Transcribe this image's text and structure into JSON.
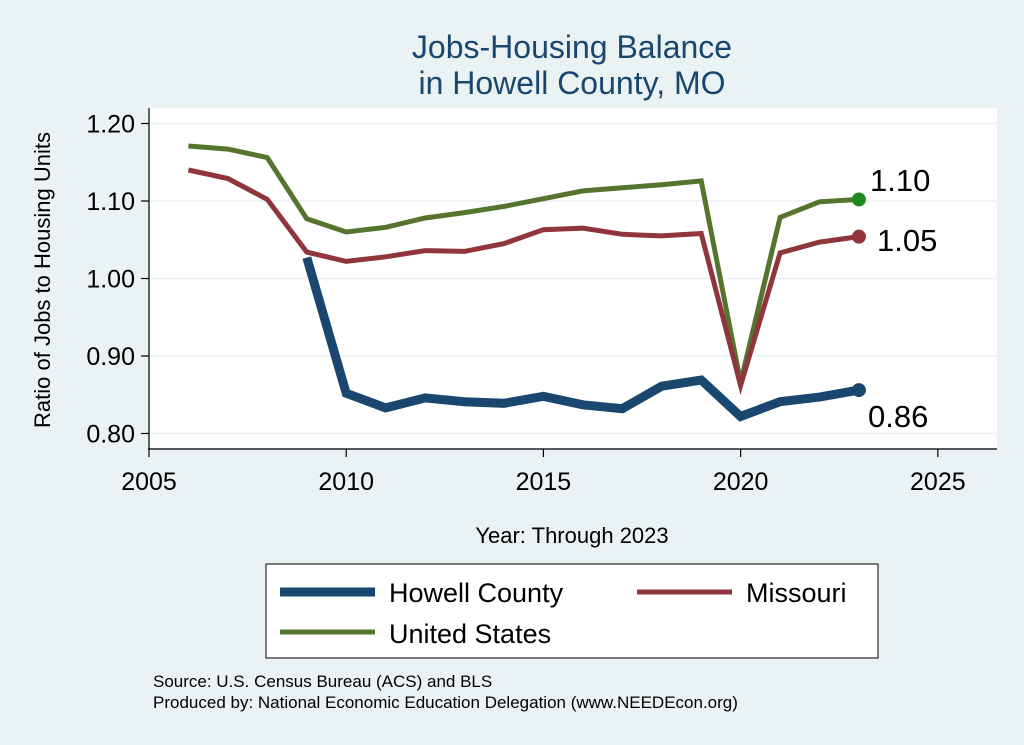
{
  "chart_data": {
    "type": "line",
    "title_line1": "Jobs-Housing Balance",
    "title_line2": "in Howell County, MO",
    "xlabel": "Year: Through 2023",
    "ylabel": "Ratio of Jobs to Housing Units",
    "xlim": [
      2005,
      2026.5
    ],
    "ylim": [
      0.78,
      1.22
    ],
    "x_ticks": [
      2005,
      2010,
      2015,
      2020,
      2025
    ],
    "y_ticks": [
      0.8,
      0.9,
      1.0,
      1.1,
      1.2
    ],
    "y_tick_labels": [
      "0.80",
      "0.90",
      "1.00",
      "1.10",
      "1.20"
    ],
    "grid": true,
    "legend_position": "bottom",
    "series": [
      {
        "name": "Howell County",
        "color": "#1a476f",
        "end_label": "0.86",
        "x": [
          2009,
          2010,
          2011,
          2012,
          2013,
          2014,
          2015,
          2016,
          2017,
          2018,
          2019,
          2020,
          2021,
          2022,
          2023
        ],
        "values": [
          1.027,
          0.852,
          0.833,
          0.846,
          0.841,
          0.839,
          0.848,
          0.837,
          0.832,
          0.861,
          0.869,
          0.822,
          0.841,
          0.847,
          0.856
        ]
      },
      {
        "name": "Missouri",
        "color": "#90353b",
        "end_label": "1.05",
        "x": [
          2006,
          2007,
          2008,
          2009,
          2010,
          2011,
          2012,
          2013,
          2014,
          2015,
          2016,
          2017,
          2018,
          2019,
          2020,
          2021,
          2022,
          2023
        ],
        "values": [
          1.14,
          1.129,
          1.102,
          1.034,
          1.022,
          1.028,
          1.036,
          1.035,
          1.045,
          1.063,
          1.065,
          1.057,
          1.055,
          1.058,
          0.862,
          1.033,
          1.047,
          1.054
        ]
      },
      {
        "name": "United States",
        "color": "#55752f",
        "end_label": "1.10",
        "x": [
          2006,
          2007,
          2008,
          2009,
          2010,
          2011,
          2012,
          2013,
          2014,
          2015,
          2016,
          2017,
          2018,
          2019,
          2020,
          2021,
          2022,
          2023
        ],
        "values": [
          1.171,
          1.167,
          1.156,
          1.077,
          1.06,
          1.066,
          1.078,
          1.085,
          1.093,
          1.103,
          1.113,
          1.117,
          1.121,
          1.126,
          0.866,
          1.079,
          1.099,
          1.102
        ]
      }
    ],
    "source_line1": "Source: U.S. Census Bureau (ACS) and BLS",
    "source_line2": "Produced by: National Economic Education Delegation (www.NEEDEcon.org)"
  }
}
